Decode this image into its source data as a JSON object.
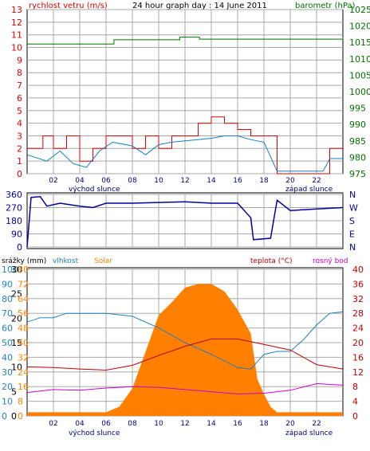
{
  "chart_data": [
    {
      "type": "line",
      "title": "24 hour graph day : 14 June 2011",
      "left_axis_label": "rychlost vetru (m/s)",
      "right_axis_label": "barometr (hPa)",
      "left_ticks": [
        "0",
        "1",
        "2",
        "3",
        "4",
        "5",
        "6",
        "7",
        "8",
        "9",
        "10",
        "11",
        "12",
        "13"
      ],
      "right_ticks": [
        "975",
        "980",
        "985",
        "990",
        "995",
        "1000",
        "1005",
        "1010",
        "1015",
        "1020",
        "1025"
      ],
      "x_ticks": [
        "02",
        "04",
        "06",
        "08",
        "10",
        "12",
        "14",
        "16",
        "18",
        "20",
        "22"
      ],
      "sunrise_label": "východ slunce",
      "sunset_label": "západ slunce",
      "ylim_left": [
        0,
        13
      ],
      "ylim_right": [
        975,
        1025
      ],
      "xlim": [
        0,
        24
      ],
      "series": [
        {
          "name": "rychlost vetru",
          "axis": "left",
          "color": "#e00000",
          "points": [
            [
              0,
              2
            ],
            [
              1.2,
              3
            ],
            [
              2,
              2
            ],
            [
              3,
              3
            ],
            [
              4,
              1
            ],
            [
              5,
              2
            ],
            [
              6,
              3
            ],
            [
              7.5,
              3
            ],
            [
              8,
              2
            ],
            [
              9,
              3
            ],
            [
              10,
              2
            ],
            [
              11,
              3
            ],
            [
              12,
              3
            ],
            [
              13,
              4
            ],
            [
              14,
              4.5
            ],
            [
              15,
              4
            ],
            [
              16,
              3.5
            ],
            [
              17,
              3
            ],
            [
              18,
              3
            ],
            [
              19,
              0
            ],
            [
              22.5,
              0
            ],
            [
              23,
              2
            ],
            [
              24,
              2
            ]
          ]
        },
        {
          "name": "barometr",
          "axis": "right",
          "color": "#007000",
          "points": [
            [
              0,
              1014.5
            ],
            [
              6.5,
              1014.5
            ],
            [
              6.6,
              1015.8
            ],
            [
              11.5,
              1015.8
            ],
            [
              11.6,
              1016.6
            ],
            [
              13,
              1016.6
            ],
            [
              13.1,
              1016.0
            ],
            [
              24,
              1016.6
            ]
          ]
        },
        {
          "axis": "left",
          "color": "#1080c0",
          "points": [
            [
              0,
              1.5
            ],
            [
              1.5,
              1.0
            ],
            [
              2.5,
              1.8
            ],
            [
              3.5,
              0.8
            ],
            [
              4.5,
              0.5
            ],
            [
              5.5,
              1.8
            ],
            [
              6.5,
              2.5
            ],
            [
              8,
              2.2
            ],
            [
              9,
              1.5
            ],
            [
              10,
              2.3
            ],
            [
              11,
              2.5
            ],
            [
              12,
              2.6
            ],
            [
              13,
              2.7
            ],
            [
              14,
              2.8
            ],
            [
              15,
              3.0
            ],
            [
              16,
              3.0
            ],
            [
              17,
              2.7
            ],
            [
              18,
              2.5
            ],
            [
              19,
              0.2
            ],
            [
              22.5,
              0.2
            ],
            [
              23,
              1.2
            ],
            [
              24,
              1.2
            ]
          ]
        }
      ]
    },
    {
      "type": "line",
      "left_ticks": [
        "360",
        "270",
        "180",
        "90",
        "0"
      ],
      "right_ticks": [
        "N",
        "W",
        "S",
        "E",
        "N"
      ],
      "ylim": [
        0,
        360
      ],
      "xlim": [
        0,
        24
      ],
      "series": [
        {
          "axis": "left",
          "color": "#0000a0",
          "points": [
            [
              0,
              0
            ],
            [
              0.3,
              340
            ],
            [
              1,
              345
            ],
            [
              1.5,
              280
            ],
            [
              2.5,
              300
            ],
            [
              4,
              280
            ],
            [
              5,
              270
            ],
            [
              6,
              300
            ],
            [
              8,
              300
            ],
            [
              10,
              305
            ],
            [
              12,
              310
            ],
            [
              14,
              300
            ],
            [
              16,
              300
            ],
            [
              17,
              200
            ],
            [
              17.2,
              50
            ],
            [
              18.5,
              60
            ],
            [
              19,
              320
            ],
            [
              20,
              250
            ],
            [
              22,
              260
            ],
            [
              24,
              270
            ]
          ]
        }
      ]
    },
    {
      "type": "area",
      "labels": {
        "precip": "srážky (mm)",
        "humidity": "vlhkost",
        "solar": "Solar",
        "temp": "teplota (°C)",
        "dew": "rosný bod"
      },
      "left_ticks_precip": [
        "0",
        "5",
        "10",
        "15",
        "20",
        "25",
        "30"
      ],
      "left_ticks_humidity": [
        "0",
        "10",
        "20",
        "30",
        "40",
        "50",
        "60",
        "70",
        "80",
        "90",
        "100"
      ],
      "left_ticks_solar": [
        "0",
        "8",
        "16",
        "24",
        "32",
        "40",
        "48",
        "56",
        "64",
        "72",
        "80"
      ],
      "right_ticks": [
        "0",
        "4",
        "8",
        "12",
        "16",
        "20",
        "24",
        "28",
        "32",
        "36",
        "40"
      ],
      "x_ticks": [
        "02",
        "04",
        "06",
        "08",
        "10",
        "12",
        "14",
        "16",
        "18",
        "20",
        "22"
      ],
      "sunrise_label": "východ slunce",
      "sunset_label": "západ slunce",
      "xlim": [
        0,
        24
      ],
      "ylim_right": [
        0,
        40
      ],
      "series": [
        {
          "name": "Solar",
          "axis": "solar",
          "color": "#ff8000",
          "fill": true,
          "points": [
            [
              0,
              2
            ],
            [
              6,
              2
            ],
            [
              7,
              5
            ],
            [
              8,
              15
            ],
            [
              9,
              35
            ],
            [
              10,
              55
            ],
            [
              11,
              62
            ],
            [
              12,
              70
            ],
            [
              13,
              72
            ],
            [
              14,
              72
            ],
            [
              15,
              68
            ],
            [
              16,
              58
            ],
            [
              17,
              45
            ],
            [
              17.5,
              20
            ],
            [
              18,
              12
            ],
            [
              18.5,
              5
            ],
            [
              19,
              2
            ],
            [
              24,
              2
            ]
          ]
        },
        {
          "name": "vlhkost",
          "axis": "humidity",
          "color": "#2080c0",
          "points": [
            [
              0,
              64
            ],
            [
              1,
              67
            ],
            [
              2,
              67
            ],
            [
              3,
              70
            ],
            [
              4,
              70
            ],
            [
              6,
              70
            ],
            [
              8,
              68
            ],
            [
              10,
              60
            ],
            [
              12,
              50
            ],
            [
              14,
              42
            ],
            [
              16,
              33
            ],
            [
              17,
              32
            ],
            [
              18,
              42
            ],
            [
              19,
              44
            ],
            [
              20,
              44
            ],
            [
              21,
              52
            ],
            [
              22,
              62
            ],
            [
              23,
              70
            ],
            [
              24,
              71
            ]
          ]
        },
        {
          "name": "teplota",
          "axis": "right",
          "color": "#c00000",
          "points": [
            [
              0,
              13.4
            ],
            [
              2,
              13.2
            ],
            [
              4,
              12.8
            ],
            [
              6,
              12.5
            ],
            [
              8,
              13.8
            ],
            [
              10,
              16.5
            ],
            [
              12,
              19.0
            ],
            [
              14,
              21.0
            ],
            [
              16,
              21.0
            ],
            [
              18,
              19.5
            ],
            [
              20,
              18.0
            ],
            [
              22,
              14.0
            ],
            [
              24,
              12.8
            ]
          ]
        },
        {
          "name": "rosný bod",
          "axis": "right",
          "color": "#cc00cc",
          "points": [
            [
              0,
              6.4
            ],
            [
              2,
              7.2
            ],
            [
              4,
              7.0
            ],
            [
              6,
              7.6
            ],
            [
              8,
              8.0
            ],
            [
              10,
              7.8
            ],
            [
              12,
              7.2
            ],
            [
              14,
              6.6
            ],
            [
              16,
              6.0
            ],
            [
              18,
              6.2
            ],
            [
              20,
              7.0
            ],
            [
              22,
              8.8
            ],
            [
              24,
              8.4
            ]
          ]
        }
      ]
    }
  ]
}
